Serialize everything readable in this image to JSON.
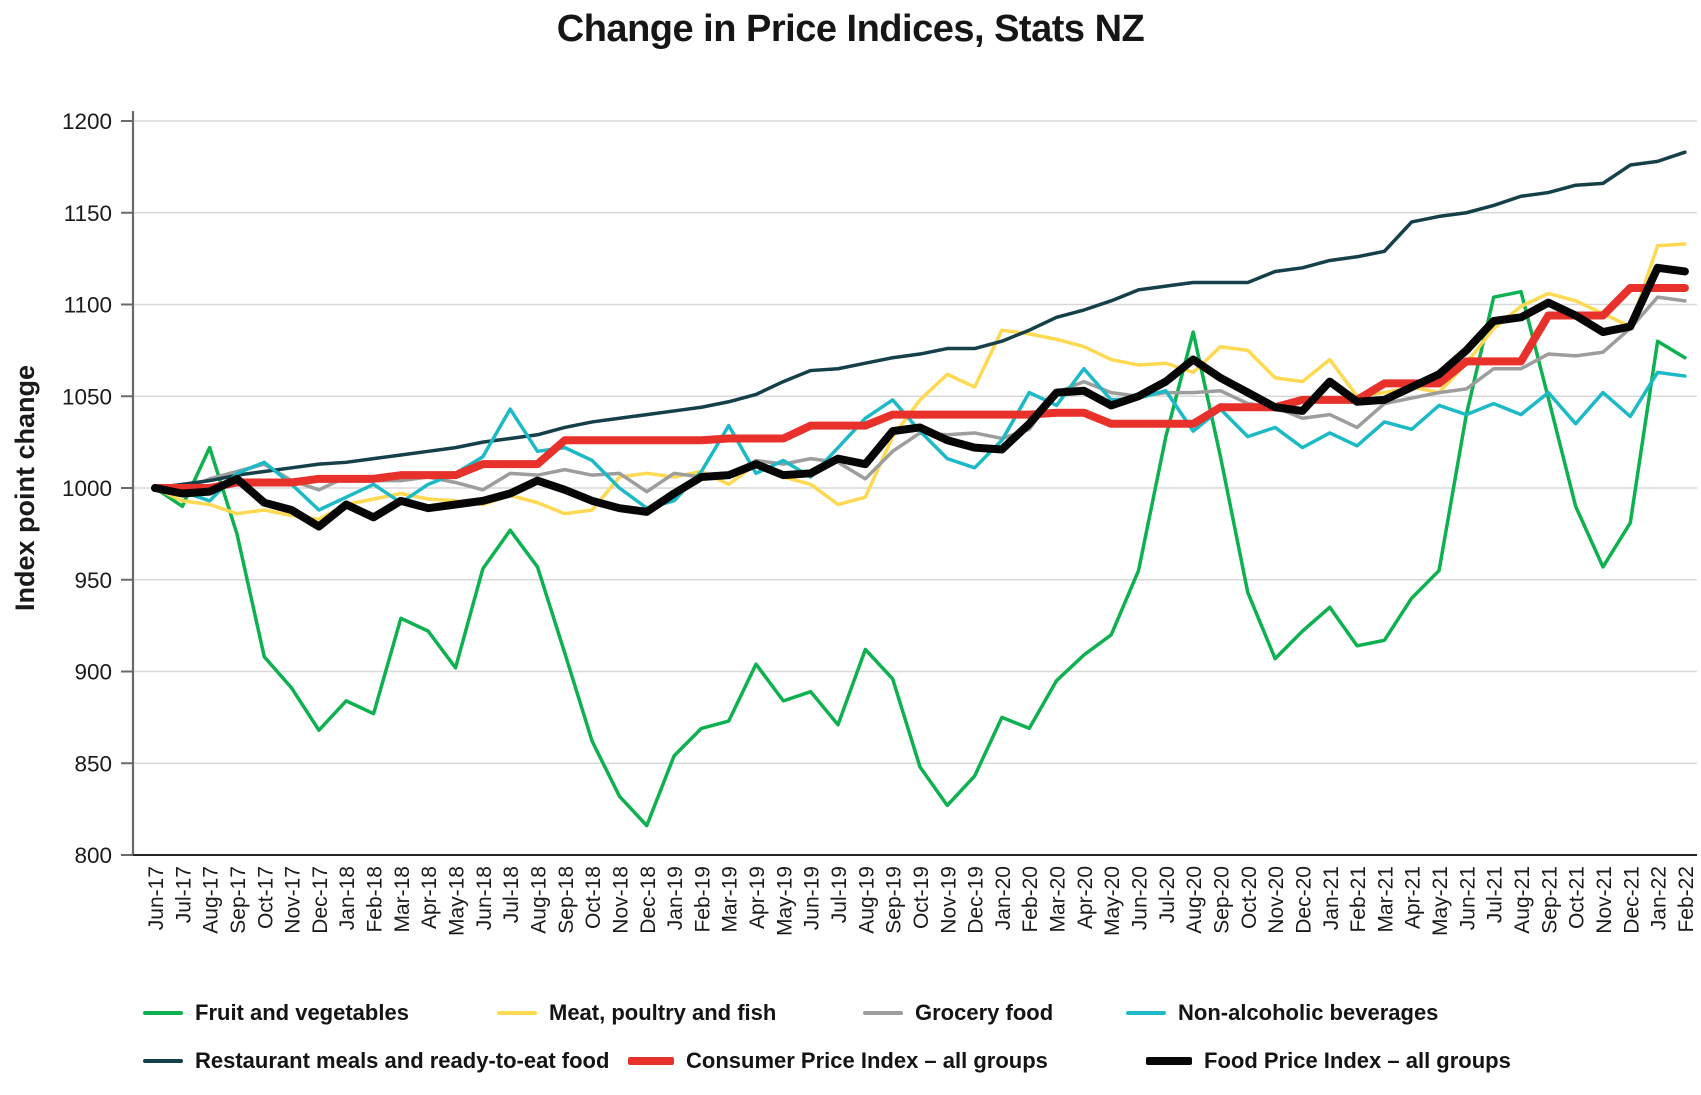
{
  "title": "Change in Price Indices, Stats NZ",
  "chart_data": {
    "type": "line",
    "title": "Change in Price Indices, Stats NZ",
    "xlabel": "",
    "ylabel": "Index point change",
    "ylim": [
      800,
      1200
    ],
    "ytick_step": 50,
    "yticks": [
      800,
      850,
      900,
      950,
      1000,
      1050,
      1100,
      1150,
      1200
    ],
    "grid": "horizontal",
    "legend_position": "bottom",
    "x": [
      "Jun-17",
      "Jul-17",
      "Aug-17",
      "Sep-17",
      "Oct-17",
      "Nov-17",
      "Dec-17",
      "Jan-18",
      "Feb-18",
      "Mar-18",
      "Apr-18",
      "May-18",
      "Jun-18",
      "Jul-18",
      "Aug-18",
      "Sep-18",
      "Oct-18",
      "Nov-18",
      "Dec-18",
      "Jan-19",
      "Feb-19",
      "Mar-19",
      "Apr-19",
      "May-19",
      "Jun-19",
      "Jul-19",
      "Aug-19",
      "Sep-19",
      "Oct-19",
      "Nov-19",
      "Dec-19",
      "Jan-20",
      "Feb-20",
      "Mar-20",
      "Apr-20",
      "May-20",
      "Jun-20",
      "Jul-20",
      "Aug-20",
      "Sep-20",
      "Oct-20",
      "Nov-20",
      "Dec-20",
      "Jan-21",
      "Feb-21",
      "Mar-21",
      "Apr-21",
      "May-21",
      "Jun-21",
      "Jul-21",
      "Aug-21",
      "Sep-21",
      "Oct-21",
      "Nov-21",
      "Dec-21",
      "Jan-22",
      "Feb-22"
    ],
    "series": [
      {
        "name": "Fruit and vegetables",
        "slug": "fruit-and-vegetables",
        "color": "#0db14f",
        "width": 3.5,
        "values": [
          1000,
          990,
          1022,
          975,
          908,
          891,
          868,
          884,
          877,
          929,
          922,
          902,
          956,
          977,
          957,
          910,
          862,
          832,
          816,
          854,
          869,
          873,
          904,
          884,
          889,
          871,
          912,
          896,
          848,
          827,
          843,
          875,
          869,
          895,
          909,
          920,
          955,
          1028,
          1085,
          1017,
          943,
          907,
          922,
          935,
          914,
          917,
          940,
          955,
          1040,
          1104,
          1107,
          1049,
          990,
          957,
          981,
          1080,
          1071
        ]
      },
      {
        "name": "Meat, poultry and fish",
        "slug": "meat-poultry-and-fish",
        "color": "#fed951",
        "width": 3.5,
        "values": [
          1000,
          993,
          991,
          986,
          988,
          985,
          983,
          991,
          994,
          997,
          994,
          993,
          991,
          996,
          992,
          986,
          988,
          1006,
          1008,
          1006,
          1009,
          1002,
          1013,
          1006,
          1002,
          991,
          995,
          1028,
          1048,
          1062,
          1055,
          1086,
          1084,
          1081,
          1077,
          1070,
          1067,
          1068,
          1063,
          1077,
          1075,
          1060,
          1058,
          1070,
          1050,
          1052,
          1055,
          1052,
          1068,
          1087,
          1099,
          1106,
          1102,
          1095,
          1088,
          1132,
          1133
        ]
      },
      {
        "name": "Grocery food",
        "slug": "grocery-food",
        "color": "#9d9d9d",
        "width": 3.5,
        "values": [
          1000,
          999,
          1005,
          1009,
          1013,
          1004,
          999,
          1006,
          1004,
          1004,
          1006,
          1003,
          999,
          1008,
          1007,
          1010,
          1007,
          1008,
          998,
          1008,
          1006,
          1006,
          1015,
          1013,
          1016,
          1014,
          1005,
          1020,
          1030,
          1029,
          1030,
          1027,
          1032,
          1052,
          1058,
          1052,
          1050,
          1052,
          1052,
          1053,
          1046,
          1044,
          1038,
          1040,
          1033,
          1046,
          1049,
          1052,
          1054,
          1065,
          1065,
          1073,
          1072,
          1074,
          1087,
          1104,
          1102
        ]
      },
      {
        "name": "Restaurant meals and ready-to-eat food",
        "slug": "restaurant-meals-and-ready-to-eat-food",
        "color": "#15404a",
        "width": 3.5,
        "values": [
          1000,
          1002,
          1004,
          1007,
          1009,
          1011,
          1013,
          1014,
          1016,
          1018,
          1020,
          1022,
          1025,
          1027,
          1029,
          1033,
          1036,
          1038,
          1040,
          1042,
          1044,
          1047,
          1051,
          1058,
          1064,
          1065,
          1068,
          1071,
          1073,
          1076,
          1076,
          1080,
          1086,
          1093,
          1097,
          1102,
          1108,
          1110,
          1112,
          1112,
          1112,
          1118,
          1120,
          1124,
          1126,
          1129,
          1145,
          1148,
          1150,
          1154,
          1159,
          1161,
          1165,
          1166,
          1176,
          1178,
          1183
        ]
      },
      {
        "name": "Non-alcoholic beverages",
        "slug": "non-alcoholic-beverages",
        "color": "#1cb9c6",
        "width": 3.5,
        "values": [
          1000,
          998,
          993,
          1008,
          1014,
          1002,
          988,
          995,
          1002,
          992,
          1002,
          1008,
          1017,
          1043,
          1020,
          1022,
          1015,
          1000,
          989,
          993,
          1009,
          1034,
          1008,
          1015,
          1006,
          1022,
          1038,
          1048,
          1031,
          1016,
          1011,
          1026,
          1052,
          1045,
          1065,
          1048,
          1049,
          1053,
          1031,
          1043,
          1028,
          1033,
          1022,
          1030,
          1023,
          1036,
          1032,
          1045,
          1040,
          1046,
          1040,
          1052,
          1035,
          1052,
          1039,
          1063,
          1061
        ]
      },
      {
        "name": "Consumer Price Index – all groups",
        "slug": "consumer-price-index-all-groups",
        "color": "#e8312b",
        "width": 8,
        "values": [
          1000,
          1000,
          1000,
          1003,
          1003,
          1003,
          1005,
          1005,
          1005,
          1007,
          1007,
          1007,
          1013,
          1013,
          1013,
          1026,
          1026,
          1026,
          1026,
          1026,
          1026,
          1027,
          1027,
          1027,
          1034,
          1034,
          1034,
          1040,
          1040,
          1040,
          1040,
          1040,
          1040,
          1041,
          1041,
          1035,
          1035,
          1035,
          1035,
          1044,
          1044,
          1044,
          1048,
          1048,
          1048,
          1057,
          1057,
          1057,
          1069,
          1069,
          1069,
          1094,
          1094,
          1094,
          1109,
          1109,
          1109
        ]
      },
      {
        "name": "Food Price Index – all groups",
        "slug": "food-price-index-all-groups",
        "color": "#060606",
        "width": 8,
        "values": [
          1000,
          997,
          998,
          1005,
          992,
          988,
          979,
          991,
          984,
          993,
          989,
          991,
          993,
          997,
          1004,
          999,
          993,
          989,
          987,
          997,
          1006,
          1007,
          1013,
          1007,
          1008,
          1016,
          1013,
          1031,
          1033,
          1026,
          1022,
          1021,
          1035,
          1052,
          1053,
          1045,
          1050,
          1058,
          1070,
          1060,
          1052,
          1044,
          1042,
          1058,
          1047,
          1048,
          1055,
          1062,
          1075,
          1091,
          1093,
          1101,
          1094,
          1085,
          1088,
          1120,
          1118
        ]
      }
    ],
    "legend_rows": [
      [
        0,
        1,
        2,
        4
      ],
      [
        3,
        5,
        6
      ]
    ]
  }
}
